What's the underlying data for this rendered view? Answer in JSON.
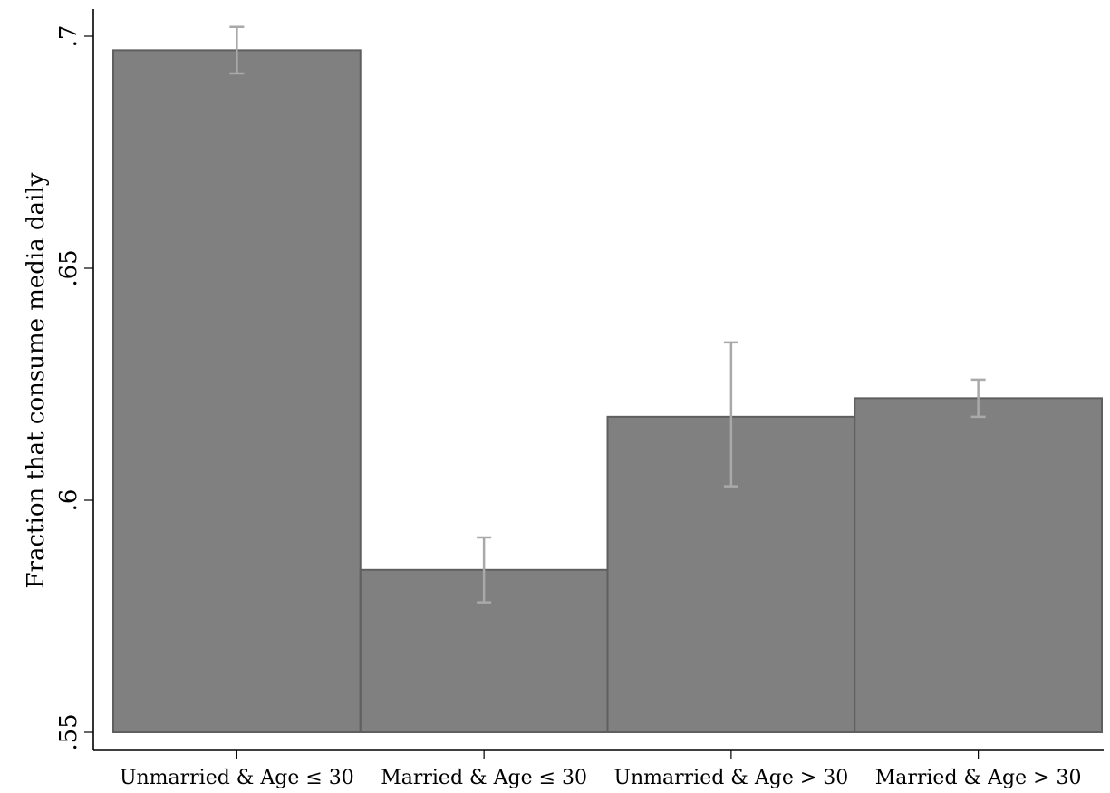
{
  "chart_data": {
    "type": "bar",
    "title": "",
    "xlabel": "",
    "ylabel": "Fraction that consume media daily",
    "categories": [
      "Unmarried & Age ≤ 30",
      "Married & Age ≤ 30",
      "Unmarried & Age > 30",
      "Married & Age > 30"
    ],
    "values": [
      0.697,
      0.585,
      0.618,
      0.622
    ],
    "error_low": [
      0.692,
      0.578,
      0.603,
      0.618
    ],
    "error_high": [
      0.702,
      0.592,
      0.634,
      0.626
    ],
    "ylim": [
      0.55,
      0.7
    ],
    "yticks": [
      0.55,
      0.6,
      0.65,
      0.7
    ],
    "ytick_labels": [
      ".55",
      ".6",
      ".65",
      ".7"
    ],
    "grid": false,
    "colors": {
      "bar_fill": "#808080",
      "bar_edge": "#5f5f5f",
      "error_bar": "#a9a9a9"
    }
  }
}
